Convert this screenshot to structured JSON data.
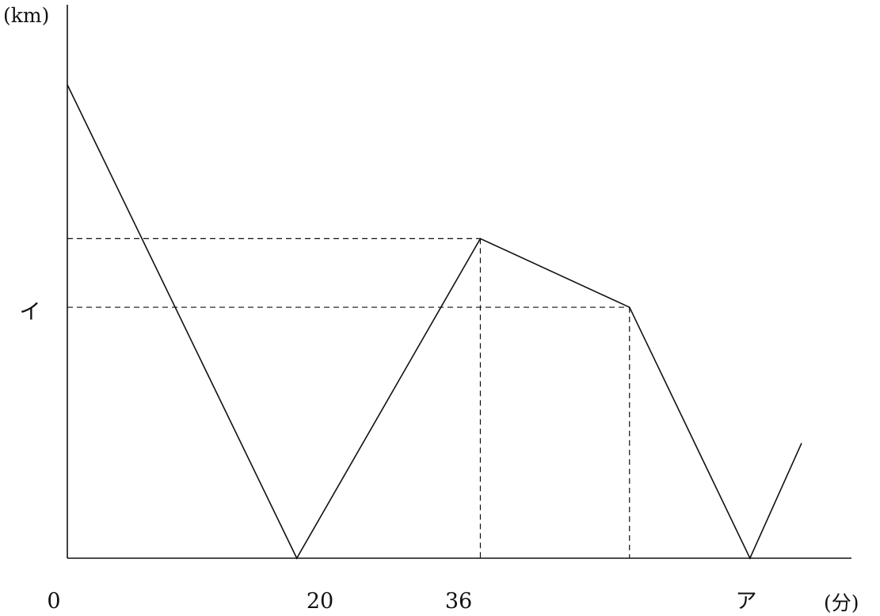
{
  "chart_data": {
    "type": "line",
    "ylabel": "(km)",
    "xlabel": "(分)",
    "origin_label": "0",
    "x_ticks": [
      {
        "x": 20,
        "label": "20"
      },
      {
        "x": 36,
        "label": "36"
      },
      {
        "label": "ア"
      }
    ],
    "y_ticks": [
      {
        "label": "イ"
      }
    ],
    "series": [
      {
        "points": [
          {
            "x": 0,
            "y": 1.0
          },
          {
            "x": 20,
            "y": 0
          },
          {
            "x": 36,
            "y": 0.675
          },
          {
            "x": 49,
            "y": 0.53
          },
          {
            "x": 59.5,
            "y": 0
          },
          {
            "x": 64,
            "y": 0.243
          }
        ]
      }
    ],
    "ref_lines": [
      {
        "from": [
          0,
          0.675
        ],
        "to": [
          36,
          0.675
        ]
      },
      {
        "from": [
          36,
          0.675
        ],
        "to": [
          36,
          0
        ]
      },
      {
        "from": [
          0,
          0.53
        ],
        "to": [
          49,
          0.53
        ]
      },
      {
        "from": [
          49,
          0.53
        ],
        "to": [
          49,
          0
        ]
      }
    ],
    "xlim": [
      0,
      64
    ],
    "ylim": [
      0,
      1.0
    ]
  }
}
